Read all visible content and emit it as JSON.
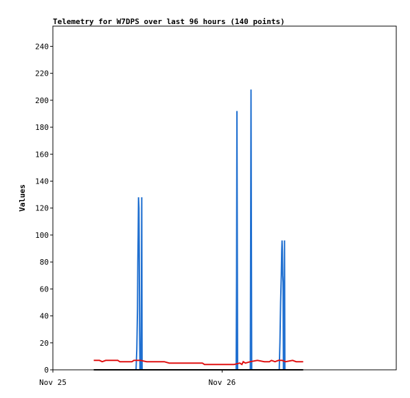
{
  "chart_data": {
    "type": "line",
    "title": "Telemetry for W7DPS over last 96 hours (140 points)",
    "xlabel": "",
    "ylabel": "Values",
    "ylim": [
      0,
      255
    ],
    "yticks": [
      0,
      20,
      40,
      60,
      80,
      100,
      120,
      140,
      160,
      180,
      200,
      220,
      240
    ],
    "xlim_hours": [
      0,
      48.7
    ],
    "xticks": [
      {
        "label": "Nov 25",
        "hour": 0
      },
      {
        "label": "Nov 26",
        "hour": 24
      }
    ],
    "grid": false,
    "legend": "none",
    "series": [
      {
        "color": "#1f6fd0",
        "points": [
          [
            11.6,
            0
          ],
          [
            11.8,
            0
          ],
          [
            11.9,
            15
          ],
          [
            12.0,
            45
          ],
          [
            12.05,
            80
          ],
          [
            12.1,
            100
          ],
          [
            12.15,
            128
          ],
          [
            12.2,
            120
          ],
          [
            12.25,
            85
          ],
          [
            12.3,
            30
          ],
          [
            12.35,
            0
          ],
          [
            12.5,
            0
          ],
          [
            12.55,
            60
          ],
          [
            12.6,
            128
          ],
          [
            12.65,
            0
          ],
          [
            26.0,
            0
          ],
          [
            26.05,
            70
          ],
          [
            26.1,
            192
          ],
          [
            26.15,
            95
          ],
          [
            26.2,
            0
          ],
          [
            28.0,
            0
          ],
          [
            28.05,
            100
          ],
          [
            28.1,
            208
          ],
          [
            28.15,
            105
          ],
          [
            28.2,
            0
          ],
          [
            32.1,
            0
          ],
          [
            32.2,
            20
          ],
          [
            32.3,
            50
          ],
          [
            32.4,
            70
          ],
          [
            32.45,
            88
          ],
          [
            32.5,
            96
          ],
          [
            32.55,
            88
          ],
          [
            32.6,
            70
          ],
          [
            32.65,
            65
          ],
          [
            32.7,
            0
          ],
          [
            32.8,
            0
          ],
          [
            32.85,
            96
          ],
          [
            32.9,
            0
          ]
        ]
      },
      {
        "color": "#e01010",
        "points": [
          [
            5.8,
            7
          ],
          [
            6.6,
            7
          ],
          [
            7.0,
            6
          ],
          [
            7.5,
            7
          ],
          [
            9.2,
            7
          ],
          [
            9.5,
            6
          ],
          [
            11.2,
            6
          ],
          [
            11.5,
            7
          ],
          [
            12.4,
            7
          ],
          [
            13.3,
            6
          ],
          [
            15.8,
            6
          ],
          [
            16.5,
            5
          ],
          [
            21.2,
            5
          ],
          [
            21.5,
            4
          ],
          [
            24.5,
            4
          ],
          [
            25.7,
            4
          ],
          [
            26.5,
            5
          ],
          [
            26.8,
            4
          ],
          [
            27.0,
            6
          ],
          [
            27.3,
            5
          ],
          [
            28.0,
            6
          ],
          [
            29.0,
            7
          ],
          [
            30.0,
            6
          ],
          [
            30.7,
            6
          ],
          [
            31.0,
            7
          ],
          [
            31.5,
            6
          ],
          [
            32.0,
            7
          ],
          [
            32.5,
            7
          ],
          [
            33.0,
            6
          ],
          [
            34.0,
            7
          ],
          [
            34.5,
            6
          ],
          [
            35.5,
            6
          ]
        ]
      },
      {
        "color": "#000000",
        "points": [
          [
            5.8,
            0
          ],
          [
            35.5,
            0
          ]
        ]
      }
    ]
  }
}
